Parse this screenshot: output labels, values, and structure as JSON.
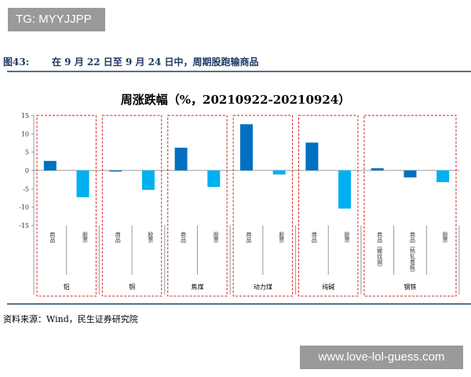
{
  "watermark_top": "TG: MYYJJPP",
  "watermark_bottom": "www.love-lol-guess.com",
  "figure_label": "图43:",
  "figure_title": "在 9 月 22 日至 9 月 24 日中，周期股跑输商品",
  "source": "资料来源：Wind，民生证券研究院",
  "chart_data": {
    "type": "bar",
    "title": "周涨跌幅（%，20210922-20210924）",
    "ylim": [
      -15,
      15
    ],
    "yticks": [
      15,
      10,
      5,
      0,
      -5,
      -10,
      -15
    ],
    "groups": [
      {
        "name": "铝",
        "bars": [
          {
            "label": "商品",
            "value": 2.6,
            "color": "#0070C0"
          },
          {
            "label": "股票",
            "value": -7.3,
            "color": "#00B0F0"
          }
        ]
      },
      {
        "name": "铜",
        "bars": [
          {
            "label": "商品",
            "value": -0.3,
            "color": "#0070C0"
          },
          {
            "label": "股票",
            "value": -5.3,
            "color": "#00B0F0"
          }
        ]
      },
      {
        "name": "焦煤",
        "bars": [
          {
            "label": "商品",
            "value": 6.2,
            "color": "#0070C0"
          },
          {
            "label": "股票",
            "value": -4.5,
            "color": "#00B0F0"
          }
        ]
      },
      {
        "name": "动力煤",
        "bars": [
          {
            "label": "商品",
            "value": 12.6,
            "color": "#0070C0"
          },
          {
            "label": "股票",
            "value": -1.1,
            "color": "#00B0F0"
          }
        ]
      },
      {
        "name": "纯碱",
        "bars": [
          {
            "label": "商品",
            "value": 7.6,
            "color": "#0070C0"
          },
          {
            "label": "股票",
            "value": -10.4,
            "color": "#00B0F0"
          }
        ]
      },
      {
        "name": "钢铁",
        "bars": [
          {
            "label": "商品（螺纹钢）",
            "value": 0.6,
            "color": "#0070C0"
          },
          {
            "label": "商品（热轧卷板）",
            "value": -1.9,
            "color": "#0070C0"
          },
          {
            "label": "股票",
            "value": -3.2,
            "color": "#00B0F0"
          }
        ]
      }
    ]
  }
}
